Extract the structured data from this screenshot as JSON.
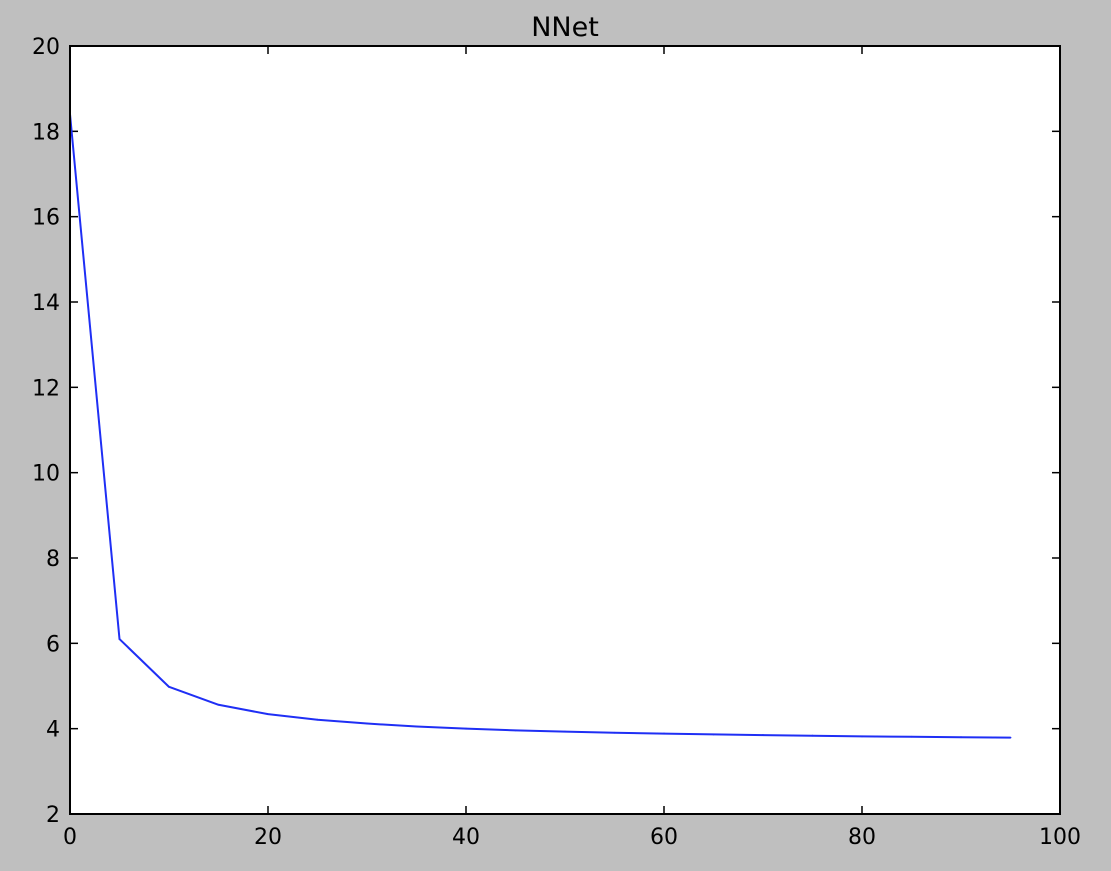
{
  "chart_data": {
    "type": "line",
    "title": "NNet",
    "xlabel": "",
    "ylabel": "",
    "xlim": [
      0,
      100
    ],
    "ylim": [
      2,
      20
    ],
    "xticks": [
      "0",
      "20",
      "40",
      "60",
      "80",
      "100"
    ],
    "yticks": [
      "2",
      "4",
      "6",
      "8",
      "10",
      "12",
      "14",
      "16",
      "18",
      "20"
    ],
    "grid": false,
    "legend": "none",
    "series": [
      {
        "color": "#1f2ff5",
        "x": [
          0,
          5,
          10,
          15,
          20,
          25,
          30,
          35,
          40,
          45,
          50,
          55,
          60,
          65,
          70,
          75,
          80,
          85,
          90,
          95
        ],
        "y": [
          18.4,
          6.1,
          4.98,
          4.56,
          4.34,
          4.21,
          4.12,
          4.05,
          4.0,
          3.96,
          3.93,
          3.905,
          3.885,
          3.865,
          3.85,
          3.835,
          3.82,
          3.81,
          3.8,
          3.79
        ]
      }
    ]
  }
}
